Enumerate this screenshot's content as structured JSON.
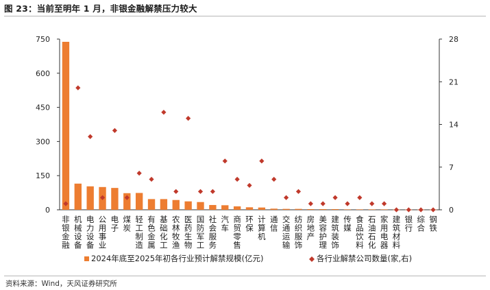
{
  "header": {
    "title": "图 23：当前至明年 1 月，非银金融解禁压力较大"
  },
  "footer": {
    "source": "资料来源：Wind，天风证券研究所"
  },
  "chart_data": {
    "type": "bar",
    "title": "当前至明年 1 月，非银金融解禁压力较大",
    "categories": [
      "非银金融",
      "机械设备",
      "电力设备",
      "公用事业",
      "电子",
      "煤炭",
      "轻工制造",
      "有色金属",
      "基础化工",
      "农林牧渔",
      "医药生物",
      "国防军工",
      "社会服务",
      "汽车",
      "商贸零售",
      "环保",
      "计算机",
      "通信",
      "交通运输",
      "纺织服饰",
      "房地产",
      "美容护理",
      "建筑装饰",
      "传媒",
      "食品饮料",
      "石油石化",
      "家用电器",
      "建筑材料",
      "银行",
      "综合",
      "钢铁"
    ],
    "series": [
      {
        "name": "2024年底至2025年初各行业预计解禁规模(亿元)",
        "type": "bar",
        "axis": "left",
        "color": "#ed7d31",
        "values": [
          738,
          115,
          103,
          100,
          96,
          73,
          74,
          47,
          47,
          43,
          37,
          34,
          21,
          20,
          15,
          11,
          10,
          5,
          4,
          4,
          3,
          3,
          3,
          2,
          2,
          2,
          2,
          1,
          1,
          1,
          1
        ]
      },
      {
        "name": "各行业解禁公司数量(家,右)",
        "type": "scatter",
        "axis": "right",
        "color": "#c0392b",
        "marker": "diamond",
        "values": [
          1,
          20,
          12,
          2,
          13,
          2,
          6,
          5,
          16,
          3,
          15,
          3,
          3,
          8,
          5,
          4,
          8,
          5,
          2,
          3,
          1,
          1,
          2,
          1,
          2,
          1,
          1,
          0,
          0,
          0,
          0
        ]
      }
    ],
    "y_left": {
      "min": 0,
      "max": 750,
      "ticks": [
        0,
        150,
        300,
        450,
        600,
        750
      ]
    },
    "y_right": {
      "min": 0,
      "max": 28,
      "ticks": [
        0,
        7,
        14,
        21,
        28
      ]
    },
    "legend_position": "bottom",
    "grid": false
  }
}
